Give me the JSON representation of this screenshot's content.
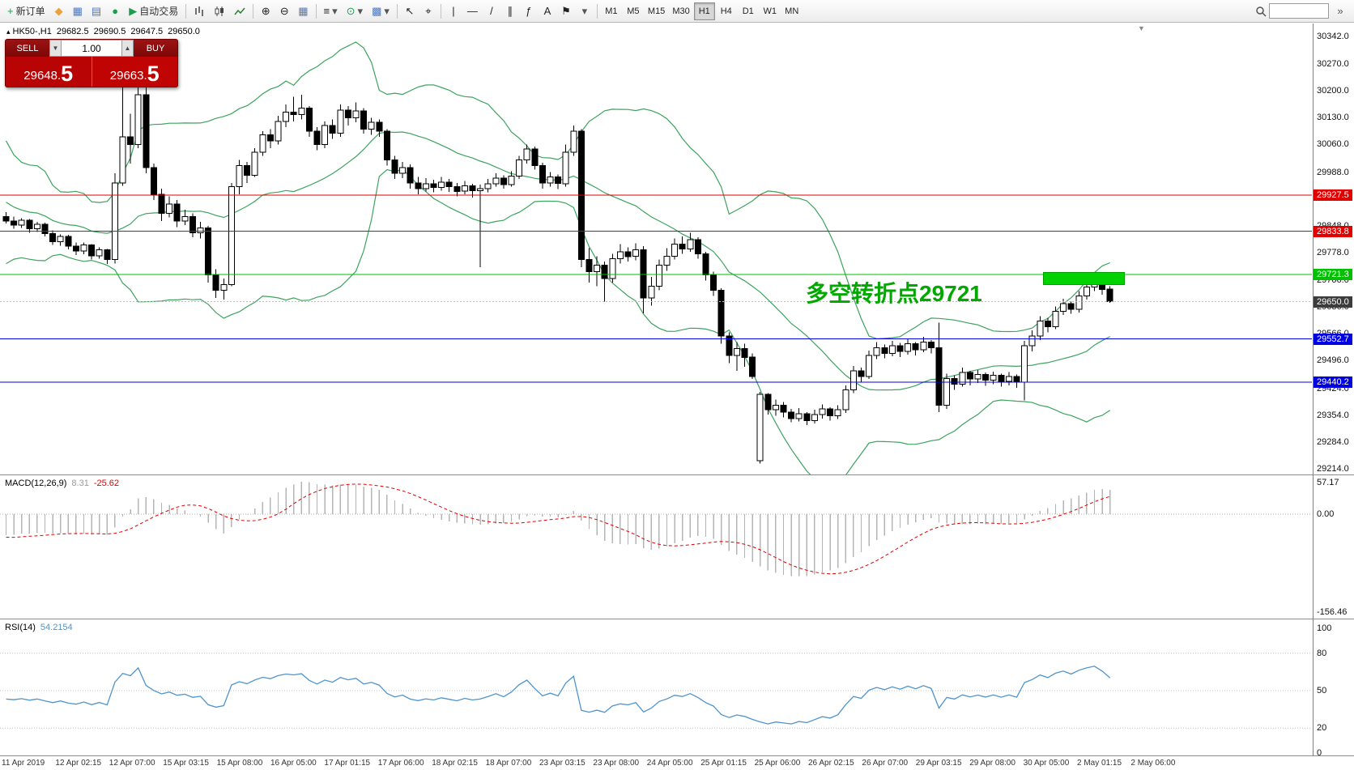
{
  "toolbar": {
    "new_order": "新订单",
    "autotrading": "自动交易",
    "timeframes": [
      "M1",
      "M5",
      "M15",
      "M30",
      "H1",
      "H4",
      "D1",
      "W1",
      "MN"
    ],
    "active_timeframe": "H1",
    "icons": {
      "plus": "+",
      "metaquotes": "◆",
      "chart_window": "▦",
      "market_watch": "▤",
      "navigator": "●",
      "play": "▶",
      "zoom_in": "⊕",
      "zoom_out": "⊖",
      "tile_windows": "▦",
      "indicators": "≡",
      "periods": "⊙",
      "templates": "▩",
      "cursor": "↖",
      "crosshair": "⌖",
      "vertical_line": "|",
      "horizontal_line": "—",
      "trendline": "/",
      "channel": "∥",
      "fibonacci": "ƒ",
      "text_tool": "A",
      "arrows_tool": "⚑",
      "dropdown": "▾",
      "expand": "»"
    }
  },
  "symbol_bar": {
    "marker": "▴",
    "symbol": "HK50-,H1",
    "open": "29682.5",
    "high": "29690.5",
    "low": "29647.5",
    "close": "29650.0"
  },
  "trade_panel": {
    "sell_label": "SELL",
    "buy_label": "BUY",
    "volume": "1.00",
    "spin_down": "▼",
    "spin_up": "▲",
    "sell_price_main": "29648",
    "sell_price_big": "5",
    "buy_price_main": "29663",
    "buy_price_big": "5"
  },
  "chart": {
    "price_ticks": [
      "30342.0",
      "30270.0",
      "30200.0",
      "30130.0",
      "30060.0",
      "29988.0",
      "29920.0",
      "29848.0",
      "29778.0",
      "29706.0",
      "29636.0",
      "29566.0",
      "29496.0",
      "29424.0",
      "29354.0",
      "29284.0",
      "29214.0"
    ],
    "hlines": [
      {
        "price": 29927.5,
        "label": "29927.5",
        "color": "#e00000"
      },
      {
        "price": 29833.8,
        "label": "29833.8",
        "color": "#e00000"
      },
      {
        "price": 29721.3,
        "label": "29721.3",
        "color": "#00c000"
      },
      {
        "price": 29552.7,
        "label": "29552.7",
        "color": "#0000e0"
      },
      {
        "price": 29440.2,
        "label": "29440.2",
        "color": "#0000e0"
      }
    ],
    "current_price": {
      "price": 29650.0,
      "label": "29650.0",
      "color": "#3c3c3c"
    },
    "annotation": {
      "text": "多空转折点29721",
      "color": "#00a800"
    },
    "rectangle": {
      "color": "#00d200"
    },
    "bollinger_color": "#3da35d",
    "candles": [
      [
        29872,
        29884,
        29854,
        29860
      ],
      [
        29860,
        29872,
        29840,
        29850
      ],
      [
        29850,
        29868,
        29842,
        29862
      ],
      [
        29862,
        29866,
        29830,
        29840
      ],
      [
        29840,
        29858,
        29832,
        29852
      ],
      [
        29852,
        29856,
        29820,
        29828
      ],
      [
        29828,
        29836,
        29798,
        29806
      ],
      [
        29806,
        29826,
        29796,
        29820
      ],
      [
        29820,
        29824,
        29786,
        29795
      ],
      [
        29795,
        29804,
        29772,
        29782
      ],
      [
        29782,
        29804,
        29774,
        29798
      ],
      [
        29798,
        29800,
        29760,
        29770
      ],
      [
        29770,
        29792,
        29762,
        29785
      ],
      [
        29785,
        29788,
        29748,
        29760
      ],
      [
        29760,
        29985,
        29750,
        29960
      ],
      [
        29960,
        30230,
        29952,
        30080
      ],
      [
        30080,
        30140,
        30010,
        30060
      ],
      [
        30060,
        30230,
        30050,
        30190
      ],
      [
        30190,
        30210,
        29985,
        30000
      ],
      [
        30000,
        30010,
        29915,
        29930
      ],
      [
        29930,
        29945,
        29860,
        29880
      ],
      [
        29880,
        29925,
        29870,
        29905
      ],
      [
        29905,
        29915,
        29845,
        29860
      ],
      [
        29860,
        29890,
        29850,
        29872
      ],
      [
        29872,
        29880,
        29818,
        29830
      ],
      [
        29830,
        29858,
        29815,
        29842
      ],
      [
        29842,
        29848,
        29700,
        29720
      ],
      [
        29720,
        29735,
        29660,
        29680
      ],
      [
        29680,
        29710,
        29655,
        29695
      ],
      [
        29695,
        29960,
        29690,
        29950
      ],
      [
        29950,
        30020,
        29930,
        30005
      ],
      [
        30005,
        30015,
        29960,
        29980
      ],
      [
        29980,
        30050,
        29975,
        30040
      ],
      [
        30040,
        30095,
        30030,
        30085
      ],
      [
        30085,
        30100,
        30050,
        30070
      ],
      [
        30070,
        30135,
        30060,
        30120
      ],
      [
        30120,
        30165,
        30105,
        30145
      ],
      [
        30145,
        30185,
        30120,
        30138
      ],
      [
        30138,
        30190,
        30125,
        30155
      ],
      [
        30155,
        30160,
        30080,
        30095
      ],
      [
        30095,
        30105,
        30045,
        30060
      ],
      [
        30060,
        30120,
        30050,
        30110
      ],
      [
        30110,
        30125,
        30075,
        30090
      ],
      [
        30090,
        30165,
        30080,
        30150
      ],
      [
        30150,
        30160,
        30110,
        30130
      ],
      [
        30130,
        30170,
        30118,
        30148
      ],
      [
        30148,
        30155,
        30088,
        30100
      ],
      [
        30100,
        30130,
        30085,
        30118
      ],
      [
        30118,
        30125,
        30080,
        30095
      ],
      [
        30095,
        30100,
        30005,
        30020
      ],
      [
        30020,
        30030,
        29970,
        29985
      ],
      [
        29985,
        30015,
        29972,
        30000
      ],
      [
        30000,
        30008,
        29945,
        29960
      ],
      [
        29960,
        29975,
        29930,
        29945
      ],
      [
        29945,
        29972,
        29938,
        29958
      ],
      [
        29958,
        29968,
        29935,
        29948
      ],
      [
        29948,
        29975,
        29940,
        29962
      ],
      [
        29962,
        29970,
        29936,
        29950
      ],
      [
        29950,
        29960,
        29925,
        29938
      ],
      [
        29938,
        29965,
        29930,
        29952
      ],
      [
        29952,
        29958,
        29922,
        29940
      ],
      [
        29940,
        29955,
        29740,
        29945
      ],
      [
        29945,
        29970,
        29935,
        29958
      ],
      [
        29958,
        29985,
        29950,
        29972
      ],
      [
        29972,
        29980,
        29945,
        29955
      ],
      [
        29955,
        29990,
        29950,
        29978
      ],
      [
        29978,
        30030,
        29970,
        30020
      ],
      [
        30020,
        30060,
        30010,
        30048
      ],
      [
        30048,
        30055,
        29995,
        30005
      ],
      [
        30005,
        30012,
        29945,
        29960
      ],
      [
        29960,
        29988,
        29950,
        29975
      ],
      [
        29975,
        29982,
        29944,
        29958
      ],
      [
        29958,
        30060,
        29950,
        30040
      ],
      [
        30040,
        30110,
        30030,
        30095
      ],
      [
        30095,
        30100,
        29740,
        29760
      ],
      [
        29760,
        29790,
        29700,
        29728
      ],
      [
        29728,
        29768,
        29690,
        29745
      ],
      [
        29745,
        29755,
        29650,
        29710
      ],
      [
        29710,
        29775,
        29700,
        29762
      ],
      [
        29762,
        29800,
        29750,
        29780
      ],
      [
        29780,
        29792,
        29755,
        29768
      ],
      [
        29768,
        29802,
        29758,
        29785
      ],
      [
        29785,
        29795,
        29620,
        29660
      ],
      [
        29660,
        29715,
        29640,
        29690
      ],
      [
        29690,
        29760,
        29680,
        29745
      ],
      [
        29745,
        29790,
        29730,
        29768
      ],
      [
        29768,
        29815,
        29760,
        29800
      ],
      [
        29800,
        29820,
        29775,
        29788
      ],
      [
        29788,
        29830,
        29780,
        29812
      ],
      [
        29812,
        29818,
        29762,
        29775
      ],
      [
        29775,
        29780,
        29705,
        29720
      ],
      [
        29720,
        29728,
        29665,
        29680
      ],
      [
        29680,
        29685,
        29540,
        29560
      ],
      [
        29560,
        29570,
        29490,
        29510
      ],
      [
        29510,
        29545,
        29470,
        29528
      ],
      [
        29528,
        29540,
        29480,
        29505
      ],
      [
        29505,
        29515,
        29448,
        29455
      ],
      [
        29235,
        29415,
        29228,
        29408
      ],
      [
        29408,
        29412,
        29355,
        29368
      ],
      [
        29368,
        29395,
        29352,
        29380
      ],
      [
        29380,
        29388,
        29348,
        29362
      ],
      [
        29362,
        29370,
        29335,
        29345
      ],
      [
        29345,
        29372,
        29338,
        29358
      ],
      [
        29358,
        29362,
        29328,
        29340
      ],
      [
        29340,
        29368,
        29332,
        29355
      ],
      [
        29355,
        29382,
        29345,
        29370
      ],
      [
        29370,
        29375,
        29340,
        29352
      ],
      [
        29352,
        29380,
        29344,
        29368
      ],
      [
        29368,
        29432,
        29360,
        29420
      ],
      [
        29420,
        29482,
        29412,
        29470
      ],
      [
        29470,
        29478,
        29440,
        29455
      ],
      [
        29455,
        29522,
        29448,
        29510
      ],
      [
        29510,
        29545,
        29500,
        29530
      ],
      [
        29530,
        29538,
        29502,
        29515
      ],
      [
        29515,
        29548,
        29508,
        29535
      ],
      [
        29535,
        29542,
        29505,
        29520
      ],
      [
        29520,
        29552,
        29512,
        29540
      ],
      [
        29540,
        29545,
        29510,
        29525
      ],
      [
        29525,
        29558,
        29518,
        29545
      ],
      [
        29545,
        29550,
        29515,
        29530
      ],
      [
        29530,
        29595,
        29362,
        29380
      ],
      [
        29380,
        29462,
        29370,
        29450
      ],
      [
        29450,
        29458,
        29420,
        29435
      ],
      [
        29435,
        29478,
        29428,
        29465
      ],
      [
        29465,
        29470,
        29432,
        29448
      ],
      [
        29448,
        29472,
        29438,
        29460
      ],
      [
        29460,
        29465,
        29430,
        29445
      ],
      [
        29445,
        29468,
        29435,
        29458
      ],
      [
        29458,
        29462,
        29428,
        29442
      ],
      [
        29442,
        29466,
        29432,
        29455
      ],
      [
        29455,
        29460,
        29425,
        29440
      ],
      [
        29440,
        29548,
        29392,
        29535
      ],
      [
        29535,
        29575,
        29520,
        29560
      ],
      [
        29560,
        29612,
        29550,
        29600
      ],
      [
        29600,
        29608,
        29570,
        29585
      ],
      [
        29585,
        29638,
        29578,
        29625
      ],
      [
        29625,
        29658,
        29615,
        29645
      ],
      [
        29645,
        29650,
        29618,
        29630
      ],
      [
        29630,
        29678,
        29622,
        29665
      ],
      [
        29665,
        29700,
        29655,
        29688
      ],
      [
        29688,
        29718,
        29678,
        29705
      ],
      [
        29705,
        29712,
        29668,
        29682.5
      ],
      [
        29682.5,
        29690.5,
        29647.5,
        29650
      ]
    ]
  },
  "macd": {
    "label": "MACD(12,26,9)",
    "value_main": "8.31",
    "value_signal": "-25.62",
    "scale_max": "57.17",
    "scale_zero": "0.00",
    "scale_min": "-156.46",
    "histogram_color": "#b4b4b4",
    "signal_color": "#e00000"
  },
  "rsi": {
    "label": "RSI(14)",
    "value": "54.2154",
    "levels": [
      "100",
      "80",
      "50",
      "20",
      "0"
    ],
    "line_color": "#4f94cd"
  },
  "time_axis": {
    "labels": [
      "11 Apr 2019",
      "12 Apr 02:15",
      "12 Apr 07:00",
      "15 Apr 03:15",
      "15 Apr 08:00",
      "16 Apr 05:00",
      "17 Apr 01:15",
      "17 Apr 06:00",
      "18 Apr 02:15",
      "18 Apr 07:00",
      "23 Apr 03:15",
      "23 Apr 08:00",
      "24 Apr 05:00",
      "25 Apr 01:15",
      "25 Apr 06:00",
      "26 Apr 02:15",
      "26 Apr 07:00",
      "29 Apr 03:15",
      "29 Apr 08:00",
      "30 Apr 05:00",
      "2 May 01:15",
      "2 May 06:00"
    ]
  }
}
